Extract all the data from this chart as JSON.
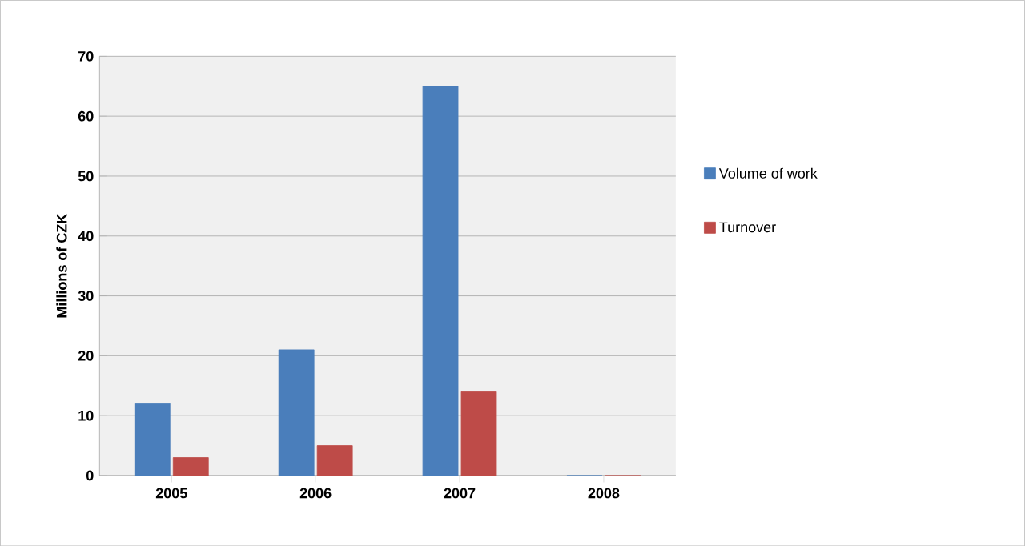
{
  "chart_data": {
    "type": "bar",
    "ylabel": "Millions of CZK",
    "categories": [
      "2005",
      "2006",
      "2007",
      "2008"
    ],
    "series": [
      {
        "name": "Volume of work",
        "color": "#4a7ebb",
        "values": [
          12,
          21,
          65,
          0
        ]
      },
      {
        "name": "Turnover",
        "color": "#be4b48",
        "values": [
          3,
          5,
          14,
          0
        ]
      }
    ],
    "ylim": [
      0,
      70
    ],
    "yticks": [
      0,
      10,
      20,
      30,
      40,
      50,
      60,
      70
    ],
    "grid": "y",
    "legend": "right"
  }
}
